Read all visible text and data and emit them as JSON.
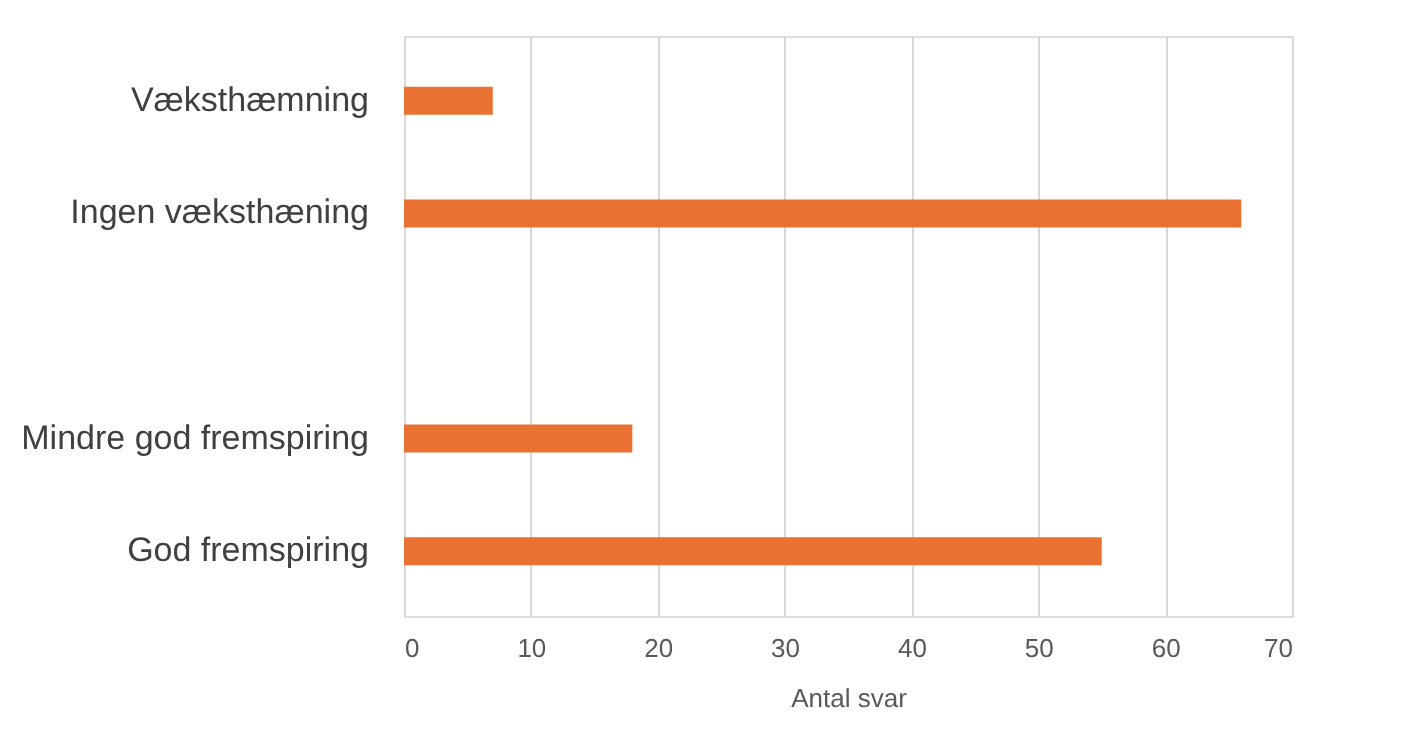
{
  "chart_data": {
    "type": "bar",
    "orientation": "horizontal",
    "xlabel": "Antal svar",
    "categories": [
      "Væksthæmning",
      "Ingen væksthæning",
      null,
      "Mindre god fremspiring",
      "God fremspiring"
    ],
    "values": [
      7,
      66,
      null,
      18,
      55
    ],
    "color": "#e97132",
    "xlim": [
      0,
      70
    ],
    "xticks": [
      0,
      10,
      20,
      30,
      40,
      50,
      60,
      70
    ],
    "grid": "x"
  }
}
